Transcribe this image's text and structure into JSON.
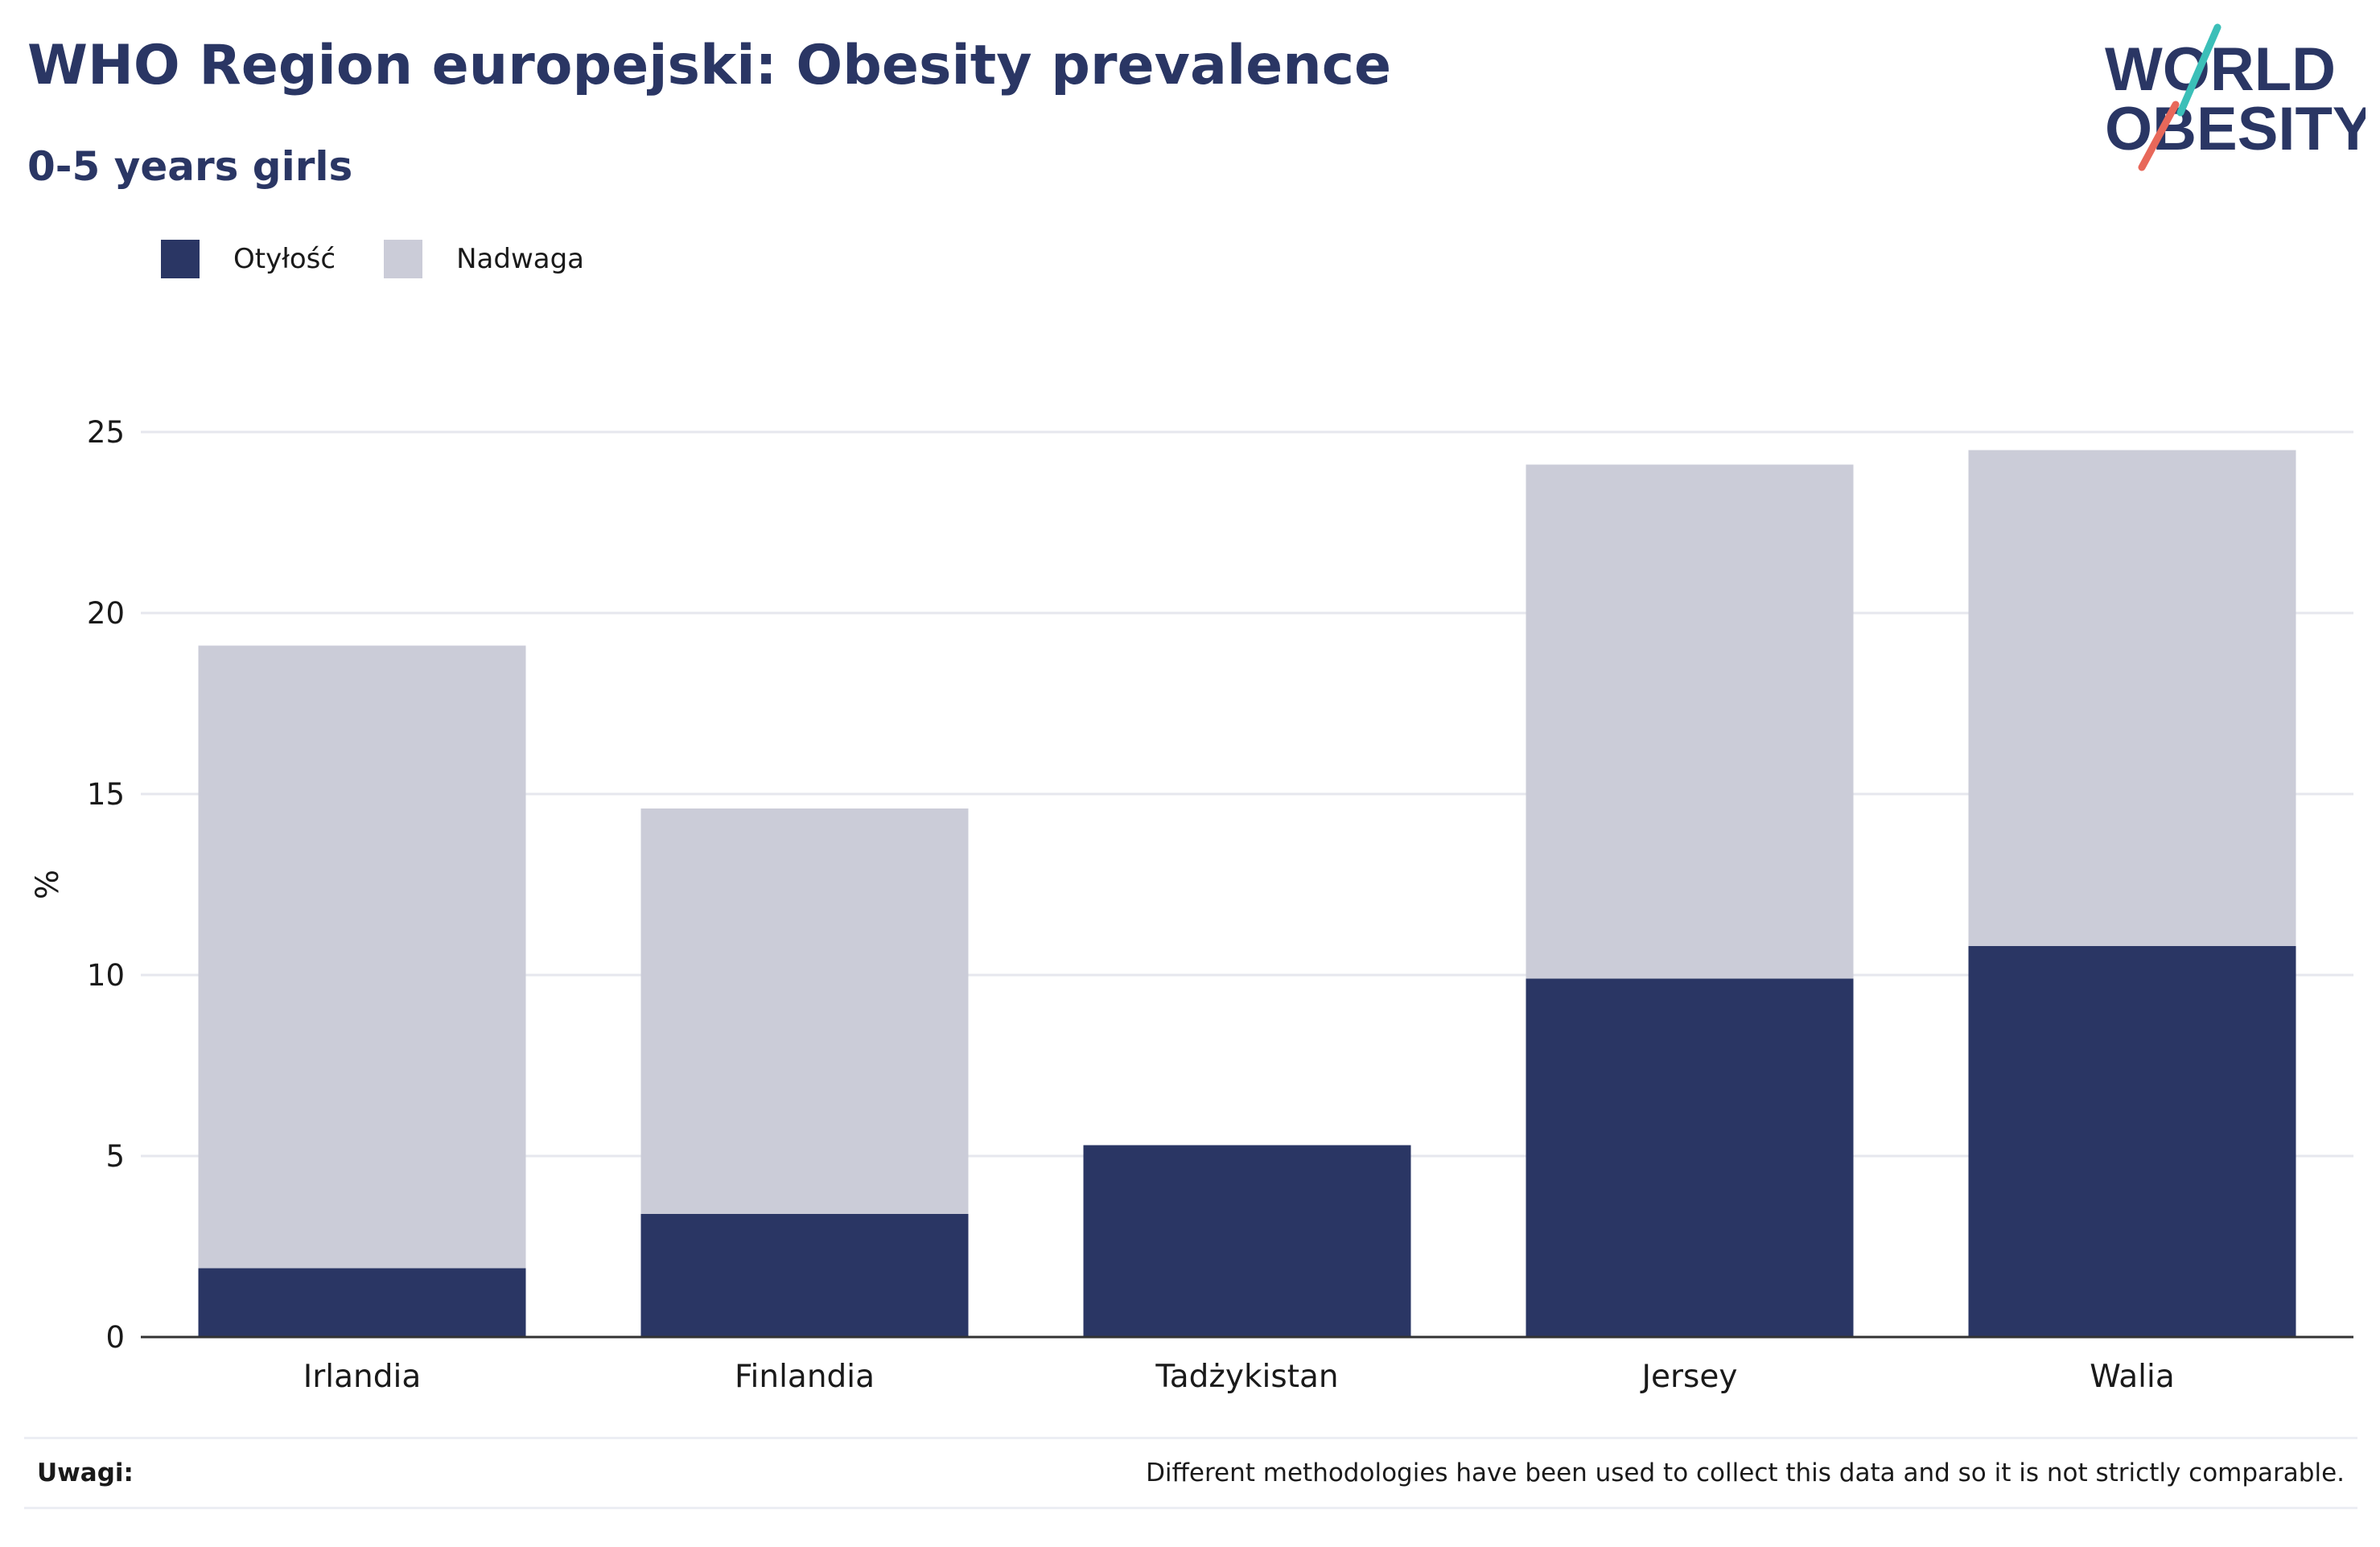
{
  "header": {
    "title": "WHO Region europejski: Obesity prevalence",
    "subtitle": "0-5 years girls"
  },
  "logo": {
    "line1": "WORLD",
    "line2": "OBESITY",
    "colors": {
      "text": "#2a3664",
      "slash_top": "#3bbfb8",
      "slash_bottom": "#e8685a"
    }
  },
  "legend": {
    "items": [
      {
        "label": "Otyłość",
        "color": "#2a3664"
      },
      {
        "label": "Nadwaga",
        "color": "#cbccd8"
      }
    ]
  },
  "chart_data": {
    "type": "bar",
    "stacked": true,
    "categories": [
      "Irlandia",
      "Finlandia",
      "Tadżykistan",
      "Jersey",
      "Walia"
    ],
    "series": [
      {
        "name": "Otyłość",
        "color": "#2a3664",
        "values": [
          1.9,
          3.4,
          5.3,
          9.9,
          10.8
        ]
      },
      {
        "name": "Nadwaga",
        "color": "#cbccd8",
        "values": [
          17.2,
          11.2,
          0,
          14.2,
          13.7
        ]
      }
    ],
    "ylabel": "%",
    "xlabel": "",
    "ylim": [
      0,
      25
    ],
    "yticks": [
      0,
      5,
      10,
      15,
      20,
      25
    ],
    "grid": true,
    "legend_position": "top-left"
  },
  "notes": {
    "label": "Uwagi:",
    "text": "Different methodologies have been used to collect this data and so it is not strictly comparable."
  }
}
